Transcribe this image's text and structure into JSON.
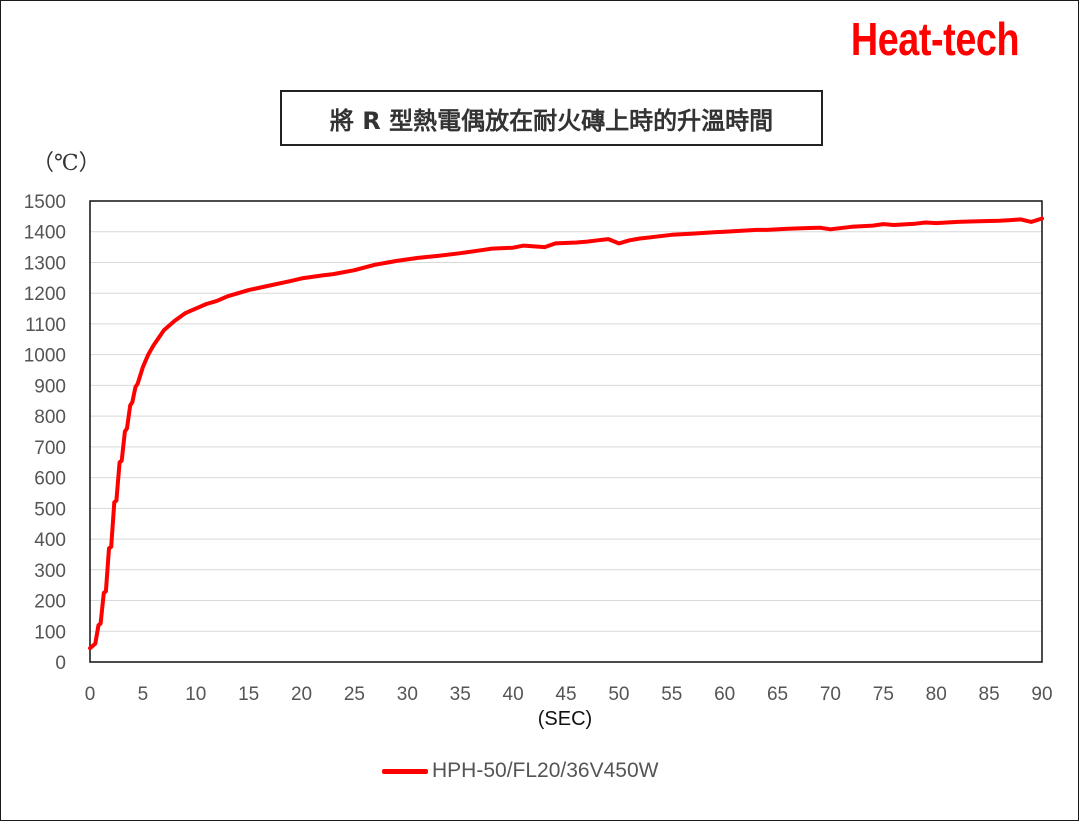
{
  "brand": "Heat-tech",
  "chart_data": {
    "type": "line",
    "title": "將 R 型熱電偶放在耐火磚上時的升溫時間",
    "ylabel": "（℃）",
    "xlabel": "(SEC)",
    "xlim": [
      0,
      90
    ],
    "ylim": [
      0,
      1500
    ],
    "x_ticks": [
      0,
      5,
      10,
      15,
      20,
      25,
      30,
      35,
      40,
      45,
      50,
      55,
      60,
      65,
      70,
      75,
      80,
      85,
      90
    ],
    "y_ticks": [
      0,
      100,
      200,
      300,
      400,
      500,
      600,
      700,
      800,
      900,
      1000,
      1100,
      1200,
      1300,
      1400,
      1500
    ],
    "grid": "horizontal",
    "legend": "bottom",
    "series": [
      {
        "name": "HPH-50/FL20/36V450W",
        "color": "#ff0000",
        "x": [
          0,
          0.5,
          0.8,
          1.0,
          1.3,
          1.5,
          1.8,
          2.0,
          2.3,
          2.5,
          2.8,
          3.0,
          3.3,
          3.5,
          3.8,
          4.0,
          4.3,
          4.5,
          5.0,
          5.5,
          6.0,
          7.0,
          8.0,
          9.0,
          10.0,
          11.0,
          12.0,
          13.0,
          14.0,
          15.0,
          17.0,
          19.0,
          20.0,
          22.0,
          23.0,
          25.0,
          27.0,
          29.0,
          31.0,
          33.0,
          35.0,
          37.0,
          38.0,
          40.0,
          41.0,
          43.0,
          44.0,
          46.0,
          47.0,
          48.0,
          49.0,
          50.0,
          51.0,
          52.0,
          53.0,
          55.0,
          57.0,
          59.0,
          60.0,
          61.0,
          63.0,
          64.0,
          66.0,
          68.0,
          69.0,
          70.0,
          72.0,
          74.0,
          75.0,
          76.0,
          78.0,
          79.0,
          80.0,
          82.0,
          84.0,
          86.0,
          87.0,
          88.0,
          89.0,
          90.0
        ],
        "values": [
          45,
          60,
          120,
          125,
          225,
          230,
          370,
          375,
          520,
          525,
          650,
          655,
          750,
          760,
          835,
          845,
          895,
          905,
          960,
          1000,
          1030,
          1080,
          1110,
          1135,
          1150,
          1165,
          1175,
          1190,
          1200,
          1210,
          1225,
          1240,
          1248,
          1258,
          1262,
          1275,
          1293,
          1305,
          1315,
          1322,
          1330,
          1340,
          1345,
          1348,
          1355,
          1350,
          1362,
          1365,
          1368,
          1372,
          1376,
          1362,
          1372,
          1378,
          1382,
          1390,
          1394,
          1398,
          1400,
          1402,
          1406,
          1406,
          1410,
          1412,
          1413,
          1408,
          1416,
          1420,
          1425,
          1422,
          1426,
          1430,
          1428,
          1432,
          1434,
          1436,
          1438,
          1440,
          1432,
          1443
        ]
      }
    ]
  }
}
